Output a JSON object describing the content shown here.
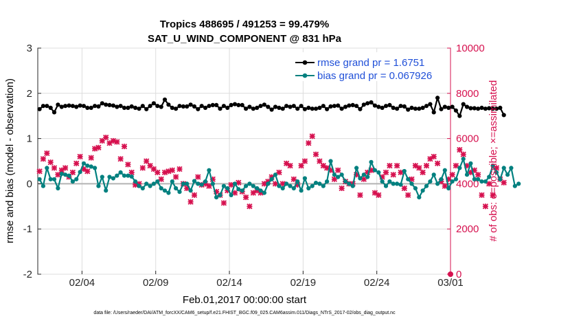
{
  "chart_data": {
    "type": "line",
    "title_line1": "Tropics 488695 / 491253 = 99.479%",
    "title_line2": "SAT_U_WIND_COMPONENT @ 831 hPa",
    "xlabel": "Feb.01,2017 00:00:00 start",
    "ylabel_left": "rmse and bias (model - observation)",
    "ylabel_right": "# of obs: o=possible; ×=assimilated",
    "ylim_left": [
      -2,
      3
    ],
    "ylim_right": [
      0,
      10000
    ],
    "xlim_days": [
      0,
      28
    ],
    "x_ticks": [
      {
        "day": 3,
        "label": "02/04"
      },
      {
        "day": 8,
        "label": "02/09"
      },
      {
        "day": 13,
        "label": "02/14"
      },
      {
        "day": 18,
        "label": "02/19"
      },
      {
        "day": 23,
        "label": "02/24"
      },
      {
        "day": 28,
        "label": "03/01"
      }
    ],
    "y_ticks_left": [
      "-2",
      "-1",
      "0",
      "1",
      "2",
      "3"
    ],
    "y_ticks_right": [
      "0",
      "2000",
      "4000",
      "6000",
      "8000",
      "10000"
    ],
    "legend": [
      {
        "label": "rmse grand pr = 1.6751",
        "color": "#000000"
      },
      {
        "label": "bias grand pr = 0.067926",
        "color": "#00807f"
      }
    ],
    "colors": {
      "rmse": "#000000",
      "bias": "#00807f",
      "obs": "#d6114f",
      "right_axis": "#d6114f",
      "legend_text": "#1f4fd8",
      "zero_line": "#b3b3b3"
    },
    "time_step_days": 0.25,
    "series": [
      {
        "name": "rmse",
        "values": [
          1.65,
          1.72,
          1.72,
          1.68,
          1.58,
          1.75,
          1.7,
          1.72,
          1.73,
          1.72,
          1.7,
          1.73,
          1.72,
          1.68,
          1.68,
          1.72,
          1.71,
          1.78,
          1.75,
          1.74,
          1.73,
          1.7,
          1.72,
          1.68,
          1.68,
          1.71,
          1.68,
          1.66,
          1.72,
          1.65,
          1.72,
          1.78,
          1.72,
          1.7,
          1.86,
          1.75,
          1.68,
          1.66,
          1.72,
          1.71,
          1.71,
          1.75,
          1.71,
          1.65,
          1.72,
          1.68,
          1.72,
          1.74,
          1.74,
          1.66,
          1.72,
          1.68,
          1.74,
          1.76,
          1.74,
          1.74,
          1.66,
          1.7,
          1.66,
          1.68,
          1.72,
          1.75,
          1.7,
          1.64,
          1.7,
          1.68,
          1.66,
          1.72,
          1.7,
          1.72,
          1.66,
          1.72,
          1.65,
          1.68,
          1.66,
          1.66,
          1.68,
          1.72,
          1.65,
          1.71,
          1.72,
          1.73,
          1.66,
          1.7,
          1.73,
          1.74,
          1.72,
          1.65,
          1.75,
          1.78,
          1.8,
          1.73,
          1.7,
          1.68,
          1.72,
          1.74,
          1.68,
          1.66,
          1.72,
          1.71,
          1.64,
          1.68,
          1.66,
          1.66,
          1.68,
          1.72,
          1.76,
          1.58,
          1.9,
          1.65,
          1.7,
          1.68,
          1.7,
          1.62,
          1.5,
          1.76,
          1.7,
          1.67,
          1.67,
          1.66,
          1.68,
          1.66,
          1.67,
          1.66,
          1.66,
          1.68,
          1.52
        ]
      },
      {
        "name": "bias",
        "values": [
          0.1,
          -0.05,
          0.35,
          0.1,
          0.1,
          -0.1,
          0.22,
          0.2,
          0.18,
          0.05,
          0.1,
          0.26,
          0.45,
          0.4,
          0.38,
          0.35,
          -0.05,
          0.15,
          -0.15,
          0.15,
          0.12,
          0.18,
          0.25,
          0.18,
          0.18,
          0.16,
          0.05,
          -0.05,
          -0.1,
          0.0,
          -0.05,
          0.0,
          0.05,
          -0.1,
          -0.15,
          -0.2,
          0.05,
          -0.1,
          -0.18,
          0.0,
          0.0,
          -0.15,
          0.06,
          0.0,
          -0.02,
          0.05,
          0.3,
          0.0,
          -0.3,
          -0.25,
          -0.05,
          -0.1,
          -0.25,
          0.0,
          -0.12,
          -0.15,
          -0.05,
          0.0,
          -0.05,
          -0.1,
          -0.15,
          -0.2,
          0.0,
          0.1,
          0.2,
          -0.05,
          -0.1,
          0.0,
          -0.05,
          -0.1,
          0.05,
          -0.15,
          0.12,
          -0.1,
          -0.05,
          0.02,
          0.0,
          -0.05,
          0.05,
          0.5,
          0.2,
          0.15,
          0.2,
          0.05,
          0.0,
          -0.05,
          0.35,
          0.12,
          0.2,
          0.15,
          0.48,
          0.3,
          0.25,
          0.05,
          -0.05,
          0.05,
          0.0,
          0.0,
          -0.02,
          0.28,
          0.1,
          0.0,
          -0.1,
          -0.3,
          -0.15,
          -0.05,
          0.05,
          0.2,
          0.0,
          0.1,
          0.3,
          -0.1,
          0.05,
          0.1,
          0.35,
          0.55,
          0.2,
          0.45,
          0.1,
          0.1,
          0.05,
          0.05,
          0.15,
          0.4,
          0.25,
          0.1,
          0.35,
          0.2,
          0.35,
          -0.05,
          0.0
        ]
      },
      {
        "name": "obs_assimilated",
        "values": [
          4550,
          5100,
          5350,
          4950,
          4700,
          4400,
          4600,
          4700,
          4300,
          4500,
          4900,
          5200,
          4650,
          4550,
          5150,
          5550,
          5600,
          5900,
          6050,
          5800,
          5900,
          5850,
          5100,
          5650,
          4850,
          4500,
          3950,
          4000,
          4700,
          5000,
          4800,
          4650,
          4500,
          4200,
          4500,
          4550,
          4600,
          4300,
          4650,
          4000,
          3800,
          3200,
          3500,
          4300,
          3950,
          4000,
          3900,
          4200,
          3650,
          3500,
          3150,
          3700,
          3950,
          3600,
          4050,
          3650,
          3400,
          3000,
          3600,
          3700,
          3600,
          4000,
          4100,
          4300,
          4000,
          4500,
          4000,
          4900,
          4800,
          4200,
          3950,
          4800,
          5000,
          5800,
          6100,
          5300,
          5000,
          4800,
          4700,
          4600,
          4200,
          4600,
          3800,
          4100,
          4000,
          4000,
          4400,
          3500,
          4200,
          4500,
          4600,
          3600,
          3500,
          4300,
          4500,
          4800,
          4400,
          4800,
          4500,
          3800,
          3500,
          4200,
          4800,
          4700,
          4500,
          4800,
          5100,
          5200,
          4900,
          4100,
          3900,
          4200,
          4400,
          4800,
          5500,
          5300,
          4800,
          4500,
          4600,
          4400,
          3500,
          3000,
          4000,
          3500,
          4700,
          4200,
          4050
        ]
      }
    ]
  },
  "footer": "data file: /Users/raeder/DAI/ATM_forcXX/CAM6_setup/f.e21.FHIST_BGC.f09_025.CAM6assim.011/Diags_NTrS_2017-02/obs_diag_output.nc"
}
